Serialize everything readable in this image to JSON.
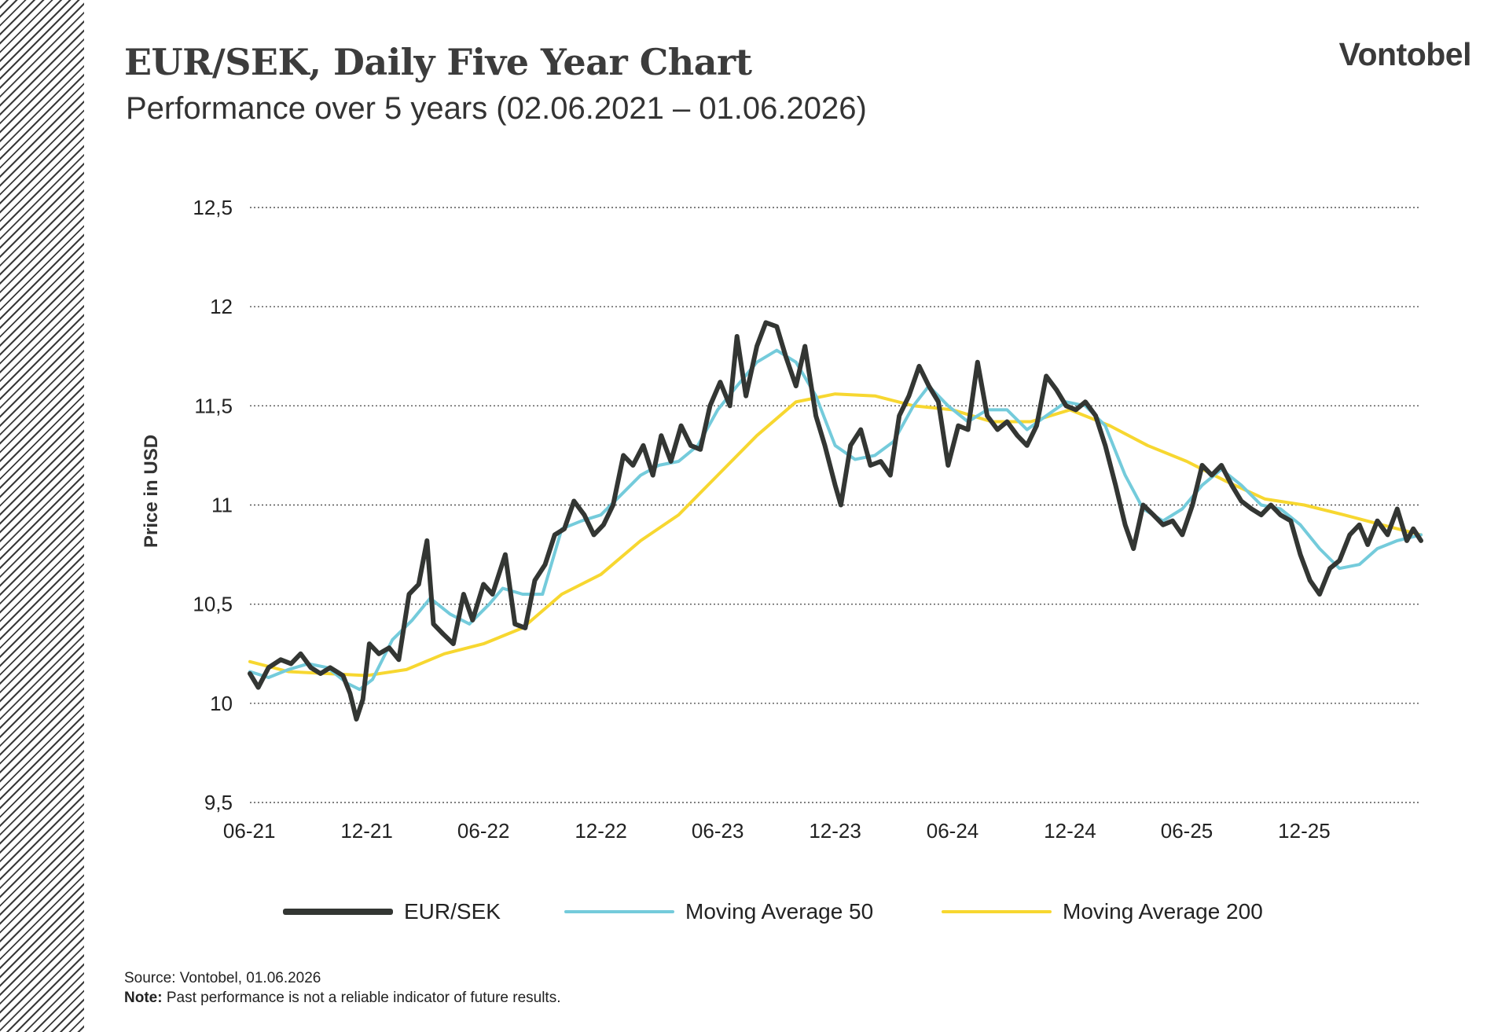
{
  "header": {
    "title": "EUR/SEK, Daily Five Year Chart",
    "subtitle": "Performance over 5 years (02.06.2021 – 01.06.2026)",
    "brand": "Vontobel"
  },
  "footer": {
    "source": "Source: Vontobel, 01.06.2026",
    "note_label": "Note:",
    "note_text": " Past performance is not a reliable indicator of future results."
  },
  "colors": {
    "price": "#333633",
    "ma50": "#74cbdb",
    "ma200": "#f7d730",
    "grid": "#555555",
    "hatch": "#3a3a3a"
  },
  "chart_data": {
    "type": "line",
    "ylabel": "Price in USD",
    "xlabel": "",
    "ylim": [
      9.5,
      12.5
    ],
    "y_ticks": [
      "9,5",
      "10",
      "10,5",
      "11",
      "11,5",
      "12",
      "12,5"
    ],
    "x_ticks": [
      "06-21",
      "12-21",
      "06-22",
      "12-22",
      "06-23",
      "12-23",
      "06-24",
      "12-24",
      "06-25",
      "12-25"
    ],
    "x_range": [
      "2021-06-02",
      "2026-06-01"
    ],
    "grid": "horizontal dotted",
    "legend": "bottom",
    "series": [
      {
        "name": "EUR/SEK",
        "color": "#333633",
        "points": [
          [
            "2021-06-02",
            10.15
          ],
          [
            "2021-06-15",
            10.08
          ],
          [
            "2021-07-01",
            10.18
          ],
          [
            "2021-07-20",
            10.22
          ],
          [
            "2021-08-05",
            10.2
          ],
          [
            "2021-08-20",
            10.25
          ],
          [
            "2021-09-05",
            10.18
          ],
          [
            "2021-09-20",
            10.15
          ],
          [
            "2021-10-05",
            10.18
          ],
          [
            "2021-10-25",
            10.14
          ],
          [
            "2021-11-05",
            10.05
          ],
          [
            "2021-11-15",
            9.92
          ],
          [
            "2021-11-25",
            10.02
          ],
          [
            "2021-12-05",
            10.3
          ],
          [
            "2021-12-20",
            10.25
          ],
          [
            "2022-01-05",
            10.28
          ],
          [
            "2022-01-20",
            10.22
          ],
          [
            "2022-02-05",
            10.55
          ],
          [
            "2022-02-20",
            10.6
          ],
          [
            "2022-03-05",
            10.82
          ],
          [
            "2022-03-15",
            10.4
          ],
          [
            "2022-03-30",
            10.35
          ],
          [
            "2022-04-15",
            10.3
          ],
          [
            "2022-05-01",
            10.55
          ],
          [
            "2022-05-15",
            10.42
          ],
          [
            "2022-06-01",
            10.6
          ],
          [
            "2022-06-15",
            10.55
          ],
          [
            "2022-07-05",
            10.75
          ],
          [
            "2022-07-20",
            10.4
          ],
          [
            "2022-08-05",
            10.38
          ],
          [
            "2022-08-20",
            10.62
          ],
          [
            "2022-09-05",
            10.7
          ],
          [
            "2022-09-20",
            10.85
          ],
          [
            "2022-10-05",
            10.88
          ],
          [
            "2022-10-20",
            11.02
          ],
          [
            "2022-11-05",
            10.95
          ],
          [
            "2022-11-20",
            10.85
          ],
          [
            "2022-12-05",
            10.9
          ],
          [
            "2022-12-20",
            11.0
          ],
          [
            "2023-01-05",
            11.25
          ],
          [
            "2023-01-20",
            11.2
          ],
          [
            "2023-02-05",
            11.3
          ],
          [
            "2023-02-20",
            11.15
          ],
          [
            "2023-03-05",
            11.35
          ],
          [
            "2023-03-20",
            11.22
          ],
          [
            "2023-04-05",
            11.4
          ],
          [
            "2023-04-20",
            11.3
          ],
          [
            "2023-05-05",
            11.28
          ],
          [
            "2023-05-20",
            11.5
          ],
          [
            "2023-06-05",
            11.62
          ],
          [
            "2023-06-20",
            11.5
          ],
          [
            "2023-07-01",
            11.85
          ],
          [
            "2023-07-15",
            11.55
          ],
          [
            "2023-08-01",
            11.8
          ],
          [
            "2023-08-15",
            11.92
          ],
          [
            "2023-09-01",
            11.9
          ],
          [
            "2023-09-15",
            11.75
          ],
          [
            "2023-10-01",
            11.6
          ],
          [
            "2023-10-15",
            11.8
          ],
          [
            "2023-11-01",
            11.45
          ],
          [
            "2023-11-15",
            11.3
          ],
          [
            "2023-12-01",
            11.1
          ],
          [
            "2023-12-10",
            11.0
          ],
          [
            "2023-12-25",
            11.3
          ],
          [
            "2024-01-10",
            11.38
          ],
          [
            "2024-01-25",
            11.2
          ],
          [
            "2024-02-10",
            11.22
          ],
          [
            "2024-02-25",
            11.15
          ],
          [
            "2024-03-10",
            11.45
          ],
          [
            "2024-03-25",
            11.55
          ],
          [
            "2024-04-10",
            11.7
          ],
          [
            "2024-04-25",
            11.6
          ],
          [
            "2024-05-10",
            11.52
          ],
          [
            "2024-05-25",
            11.2
          ],
          [
            "2024-06-10",
            11.4
          ],
          [
            "2024-06-25",
            11.38
          ],
          [
            "2024-07-10",
            11.72
          ],
          [
            "2024-07-25",
            11.45
          ],
          [
            "2024-08-10",
            11.38
          ],
          [
            "2024-08-25",
            11.42
          ],
          [
            "2024-09-10",
            11.35
          ],
          [
            "2024-09-25",
            11.3
          ],
          [
            "2024-10-10",
            11.4
          ],
          [
            "2024-10-25",
            11.65
          ],
          [
            "2024-11-10",
            11.58
          ],
          [
            "2024-11-25",
            11.5
          ],
          [
            "2024-12-10",
            11.48
          ],
          [
            "2024-12-25",
            11.52
          ],
          [
            "2025-01-10",
            11.45
          ],
          [
            "2025-01-25",
            11.3
          ],
          [
            "2025-02-10",
            11.1
          ],
          [
            "2025-02-25",
            10.9
          ],
          [
            "2025-03-10",
            10.78
          ],
          [
            "2025-03-25",
            11.0
          ],
          [
            "2025-04-10",
            10.95
          ],
          [
            "2025-04-25",
            10.9
          ],
          [
            "2025-05-10",
            10.92
          ],
          [
            "2025-05-25",
            10.85
          ],
          [
            "2025-06-10",
            11.0
          ],
          [
            "2025-06-25",
            11.2
          ],
          [
            "2025-07-10",
            11.15
          ],
          [
            "2025-07-25",
            11.2
          ],
          [
            "2025-08-10",
            11.1
          ],
          [
            "2025-08-25",
            11.02
          ],
          [
            "2025-09-10",
            10.98
          ],
          [
            "2025-09-25",
            10.95
          ],
          [
            "2025-10-10",
            11.0
          ],
          [
            "2025-10-25",
            10.95
          ],
          [
            "2025-11-10",
            10.92
          ],
          [
            "2025-11-25",
            10.75
          ],
          [
            "2025-12-10",
            10.62
          ],
          [
            "2025-12-25",
            10.55
          ],
          [
            "2026-01-10",
            10.68
          ],
          [
            "2026-01-25",
            10.72
          ],
          [
            "2026-02-10",
            10.85
          ],
          [
            "2026-02-25",
            10.9
          ],
          [
            "2026-03-10",
            10.8
          ],
          [
            "2026-03-25",
            10.92
          ],
          [
            "2026-04-10",
            10.85
          ],
          [
            "2026-04-25",
            10.98
          ],
          [
            "2026-05-10",
            10.82
          ],
          [
            "2026-05-20",
            10.88
          ],
          [
            "2026-06-01",
            10.82
          ]
        ]
      },
      {
        "name": "Moving Average 50",
        "color": "#74cbdb",
        "points": [
          [
            "2021-06-02",
            10.16
          ],
          [
            "2021-07-01",
            10.13
          ],
          [
            "2021-08-01",
            10.17
          ],
          [
            "2021-09-01",
            10.2
          ],
          [
            "2021-10-01",
            10.18
          ],
          [
            "2021-11-01",
            10.1
          ],
          [
            "2021-11-20",
            10.07
          ],
          [
            "2021-12-10",
            10.12
          ],
          [
            "2022-01-10",
            10.32
          ],
          [
            "2022-02-10",
            10.42
          ],
          [
            "2022-03-10",
            10.53
          ],
          [
            "2022-04-10",
            10.45
          ],
          [
            "2022-05-10",
            10.4
          ],
          [
            "2022-06-10",
            10.5
          ],
          [
            "2022-07-01",
            10.58
          ],
          [
            "2022-08-01",
            10.55
          ],
          [
            "2022-09-01",
            10.55
          ],
          [
            "2022-10-01",
            10.88
          ],
          [
            "2022-11-01",
            10.92
          ],
          [
            "2022-12-01",
            10.95
          ],
          [
            "2023-01-01",
            11.05
          ],
          [
            "2023-02-01",
            11.15
          ],
          [
            "2023-03-01",
            11.2
          ],
          [
            "2023-04-01",
            11.22
          ],
          [
            "2023-05-01",
            11.3
          ],
          [
            "2023-06-01",
            11.48
          ],
          [
            "2023-07-01",
            11.6
          ],
          [
            "2023-08-01",
            11.72
          ],
          [
            "2023-09-01",
            11.78
          ],
          [
            "2023-10-01",
            11.72
          ],
          [
            "2023-11-01",
            11.55
          ],
          [
            "2023-12-01",
            11.3
          ],
          [
            "2024-01-01",
            11.23
          ],
          [
            "2024-02-01",
            11.25
          ],
          [
            "2024-03-01",
            11.32
          ],
          [
            "2024-04-01",
            11.5
          ],
          [
            "2024-04-25",
            11.6
          ],
          [
            "2024-05-25",
            11.5
          ],
          [
            "2024-06-25",
            11.42
          ],
          [
            "2024-07-25",
            11.48
          ],
          [
            "2024-08-25",
            11.48
          ],
          [
            "2024-09-25",
            11.38
          ],
          [
            "2024-10-25",
            11.45
          ],
          [
            "2024-11-25",
            11.52
          ],
          [
            "2024-12-25",
            11.5
          ],
          [
            "2025-01-25",
            11.4
          ],
          [
            "2025-02-25",
            11.15
          ],
          [
            "2025-03-25",
            10.98
          ],
          [
            "2025-04-25",
            10.92
          ],
          [
            "2025-05-25",
            10.98
          ],
          [
            "2025-06-25",
            11.1
          ],
          [
            "2025-07-25",
            11.18
          ],
          [
            "2025-08-25",
            11.1
          ],
          [
            "2025-09-25",
            11.0
          ],
          [
            "2025-10-25",
            10.98
          ],
          [
            "2025-11-25",
            10.9
          ],
          [
            "2025-12-25",
            10.78
          ],
          [
            "2026-01-25",
            10.68
          ],
          [
            "2026-02-25",
            10.7
          ],
          [
            "2026-03-25",
            10.78
          ],
          [
            "2026-04-25",
            10.82
          ],
          [
            "2026-06-01",
            10.85
          ]
        ]
      },
      {
        "name": "Moving Average 200",
        "color": "#f7d730",
        "points": [
          [
            "2021-06-02",
            10.21
          ],
          [
            "2021-08-01",
            10.16
          ],
          [
            "2021-10-01",
            10.15
          ],
          [
            "2021-12-01",
            10.14
          ],
          [
            "2022-02-01",
            10.17
          ],
          [
            "2022-04-01",
            10.25
          ],
          [
            "2022-06-01",
            10.3
          ],
          [
            "2022-08-01",
            10.38
          ],
          [
            "2022-10-01",
            10.55
          ],
          [
            "2022-12-01",
            10.65
          ],
          [
            "2023-02-01",
            10.82
          ],
          [
            "2023-04-01",
            10.95
          ],
          [
            "2023-06-01",
            11.15
          ],
          [
            "2023-08-01",
            11.35
          ],
          [
            "2023-10-01",
            11.52
          ],
          [
            "2023-12-01",
            11.56
          ],
          [
            "2024-02-01",
            11.55
          ],
          [
            "2024-04-01",
            11.5
          ],
          [
            "2024-06-01",
            11.48
          ],
          [
            "2024-08-01",
            11.42
          ],
          [
            "2024-10-01",
            11.42
          ],
          [
            "2024-12-01",
            11.48
          ],
          [
            "2025-02-01",
            11.4
          ],
          [
            "2025-04-01",
            11.3
          ],
          [
            "2025-06-01",
            11.22
          ],
          [
            "2025-08-01",
            11.12
          ],
          [
            "2025-10-01",
            11.03
          ],
          [
            "2025-12-01",
            11.0
          ],
          [
            "2026-02-01",
            10.95
          ],
          [
            "2026-04-01",
            10.9
          ],
          [
            "2026-06-01",
            10.85
          ]
        ]
      }
    ]
  }
}
